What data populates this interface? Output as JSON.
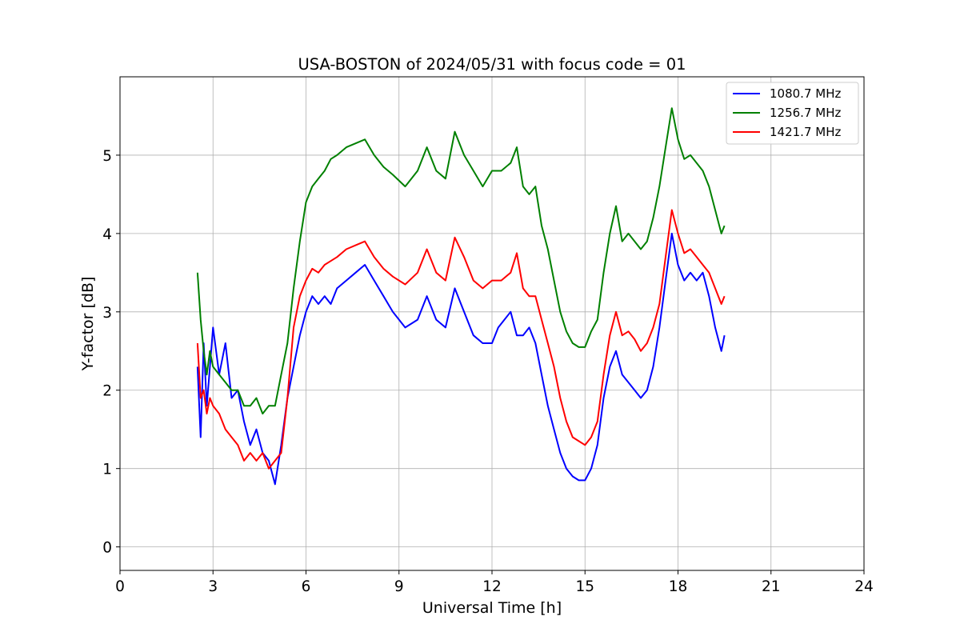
{
  "chart_data": {
    "type": "line",
    "title": "USA-BOSTON of 2024/05/31 with focus code = 01",
    "xlabel": "Universal Time [h]",
    "ylabel": "Y-factor [dB]",
    "xlim": [
      0,
      24
    ],
    "ylim": [
      -0.3,
      6.0
    ],
    "xticks": [
      0,
      3,
      6,
      9,
      12,
      15,
      18,
      21,
      24
    ],
    "yticks": [
      0,
      1,
      2,
      3,
      4,
      5
    ],
    "grid": true,
    "legend_position": "top-right",
    "series": [
      {
        "name": "1080.7 MHz",
        "color": "#0000ff",
        "points": [
          [
            2.5,
            2.3
          ],
          [
            2.6,
            1.4
          ],
          [
            2.7,
            2.6
          ],
          [
            2.8,
            1.8
          ],
          [
            2.9,
            2.3
          ],
          [
            3.0,
            2.8
          ],
          [
            3.2,
            2.2
          ],
          [
            3.4,
            2.6
          ],
          [
            3.6,
            1.9
          ],
          [
            3.8,
            2.0
          ],
          [
            4.0,
            1.6
          ],
          [
            4.2,
            1.3
          ],
          [
            4.4,
            1.5
          ],
          [
            4.6,
            1.2
          ],
          [
            4.8,
            1.1
          ],
          [
            5.0,
            0.8
          ],
          [
            5.2,
            1.3
          ],
          [
            5.4,
            1.9
          ],
          [
            5.6,
            2.3
          ],
          [
            5.8,
            2.7
          ],
          [
            6.0,
            3.0
          ],
          [
            6.2,
            3.2
          ],
          [
            6.4,
            3.1
          ],
          [
            6.6,
            3.2
          ],
          [
            6.8,
            3.1
          ],
          [
            7.0,
            3.3
          ],
          [
            7.3,
            3.4
          ],
          [
            7.6,
            3.5
          ],
          [
            7.9,
            3.6
          ],
          [
            8.2,
            3.4
          ],
          [
            8.5,
            3.2
          ],
          [
            8.8,
            3.0
          ],
          [
            9.2,
            2.8
          ],
          [
            9.6,
            2.9
          ],
          [
            9.9,
            3.2
          ],
          [
            10.2,
            2.9
          ],
          [
            10.5,
            2.8
          ],
          [
            10.8,
            3.3
          ],
          [
            11.1,
            3.0
          ],
          [
            11.4,
            2.7
          ],
          [
            11.7,
            2.6
          ],
          [
            12.0,
            2.6
          ],
          [
            12.2,
            2.8
          ],
          [
            12.4,
            2.9
          ],
          [
            12.6,
            3.0
          ],
          [
            12.8,
            2.7
          ],
          [
            13.0,
            2.7
          ],
          [
            13.2,
            2.8
          ],
          [
            13.4,
            2.6
          ],
          [
            13.6,
            2.2
          ],
          [
            13.8,
            1.8
          ],
          [
            14.0,
            1.5
          ],
          [
            14.2,
            1.2
          ],
          [
            14.4,
            1.0
          ],
          [
            14.6,
            0.9
          ],
          [
            14.8,
            0.85
          ],
          [
            15.0,
            0.85
          ],
          [
            15.2,
            1.0
          ],
          [
            15.4,
            1.3
          ],
          [
            15.6,
            1.9
          ],
          [
            15.8,
            2.3
          ],
          [
            16.0,
            2.5
          ],
          [
            16.2,
            2.2
          ],
          [
            16.4,
            2.1
          ],
          [
            16.6,
            2.0
          ],
          [
            16.8,
            1.9
          ],
          [
            17.0,
            2.0
          ],
          [
            17.2,
            2.3
          ],
          [
            17.4,
            2.8
          ],
          [
            17.6,
            3.4
          ],
          [
            17.8,
            4.0
          ],
          [
            18.0,
            3.6
          ],
          [
            18.2,
            3.4
          ],
          [
            18.4,
            3.5
          ],
          [
            18.6,
            3.4
          ],
          [
            18.8,
            3.5
          ],
          [
            19.0,
            3.2
          ],
          [
            19.2,
            2.8
          ],
          [
            19.4,
            2.5
          ],
          [
            19.5,
            2.7
          ]
        ]
      },
      {
        "name": "1256.7 MHz",
        "color": "#008000",
        "points": [
          [
            2.5,
            3.5
          ],
          [
            2.6,
            2.9
          ],
          [
            2.7,
            2.5
          ],
          [
            2.8,
            2.2
          ],
          [
            2.9,
            2.5
          ],
          [
            3.0,
            2.3
          ],
          [
            3.2,
            2.2
          ],
          [
            3.4,
            2.1
          ],
          [
            3.6,
            2.0
          ],
          [
            3.8,
            2.0
          ],
          [
            4.0,
            1.8
          ],
          [
            4.2,
            1.8
          ],
          [
            4.4,
            1.9
          ],
          [
            4.6,
            1.7
          ],
          [
            4.8,
            1.8
          ],
          [
            5.0,
            1.8
          ],
          [
            5.2,
            2.2
          ],
          [
            5.4,
            2.6
          ],
          [
            5.6,
            3.3
          ],
          [
            5.8,
            3.9
          ],
          [
            6.0,
            4.4
          ],
          [
            6.2,
            4.6
          ],
          [
            6.4,
            4.7
          ],
          [
            6.6,
            4.8
          ],
          [
            6.8,
            4.95
          ],
          [
            7.0,
            5.0
          ],
          [
            7.3,
            5.1
          ],
          [
            7.6,
            5.15
          ],
          [
            7.9,
            5.2
          ],
          [
            8.2,
            5.0
          ],
          [
            8.5,
            4.85
          ],
          [
            8.8,
            4.75
          ],
          [
            9.2,
            4.6
          ],
          [
            9.6,
            4.8
          ],
          [
            9.9,
            5.1
          ],
          [
            10.2,
            4.8
          ],
          [
            10.5,
            4.7
          ],
          [
            10.8,
            5.3
          ],
          [
            11.1,
            5.0
          ],
          [
            11.4,
            4.8
          ],
          [
            11.7,
            4.6
          ],
          [
            12.0,
            4.8
          ],
          [
            12.3,
            4.8
          ],
          [
            12.6,
            4.9
          ],
          [
            12.8,
            5.1
          ],
          [
            13.0,
            4.6
          ],
          [
            13.2,
            4.5
          ],
          [
            13.4,
            4.6
          ],
          [
            13.6,
            4.1
          ],
          [
            13.8,
            3.8
          ],
          [
            14.0,
            3.4
          ],
          [
            14.2,
            3.0
          ],
          [
            14.4,
            2.75
          ],
          [
            14.6,
            2.6
          ],
          [
            14.8,
            2.55
          ],
          [
            15.0,
            2.55
          ],
          [
            15.2,
            2.75
          ],
          [
            15.4,
            2.9
          ],
          [
            15.6,
            3.5
          ],
          [
            15.8,
            4.0
          ],
          [
            16.0,
            4.35
          ],
          [
            16.2,
            3.9
          ],
          [
            16.4,
            4.0
          ],
          [
            16.6,
            3.9
          ],
          [
            16.8,
            3.8
          ],
          [
            17.0,
            3.9
          ],
          [
            17.2,
            4.2
          ],
          [
            17.4,
            4.6
          ],
          [
            17.6,
            5.1
          ],
          [
            17.8,
            5.6
          ],
          [
            18.0,
            5.2
          ],
          [
            18.2,
            4.95
          ],
          [
            18.4,
            5.0
          ],
          [
            18.6,
            4.9
          ],
          [
            18.8,
            4.8
          ],
          [
            19.0,
            4.6
          ],
          [
            19.2,
            4.3
          ],
          [
            19.4,
            4.0
          ],
          [
            19.5,
            4.1
          ]
        ]
      },
      {
        "name": "1421.7 MHz",
        "color": "#ff0000",
        "points": [
          [
            2.5,
            2.6
          ],
          [
            2.6,
            1.9
          ],
          [
            2.7,
            2.0
          ],
          [
            2.8,
            1.7
          ],
          [
            2.9,
            1.9
          ],
          [
            3.0,
            1.8
          ],
          [
            3.2,
            1.7
          ],
          [
            3.4,
            1.5
          ],
          [
            3.6,
            1.4
          ],
          [
            3.8,
            1.3
          ],
          [
            4.0,
            1.1
          ],
          [
            4.2,
            1.2
          ],
          [
            4.4,
            1.1
          ],
          [
            4.6,
            1.2
          ],
          [
            4.8,
            1.0
          ],
          [
            5.0,
            1.1
          ],
          [
            5.2,
            1.2
          ],
          [
            5.4,
            1.9
          ],
          [
            5.6,
            2.8
          ],
          [
            5.8,
            3.2
          ],
          [
            6.0,
            3.4
          ],
          [
            6.2,
            3.55
          ],
          [
            6.4,
            3.5
          ],
          [
            6.6,
            3.6
          ],
          [
            6.8,
            3.65
          ],
          [
            7.0,
            3.7
          ],
          [
            7.3,
            3.8
          ],
          [
            7.6,
            3.85
          ],
          [
            7.9,
            3.9
          ],
          [
            8.2,
            3.7
          ],
          [
            8.5,
            3.55
          ],
          [
            8.8,
            3.45
          ],
          [
            9.2,
            3.35
          ],
          [
            9.6,
            3.5
          ],
          [
            9.9,
            3.8
          ],
          [
            10.2,
            3.5
          ],
          [
            10.5,
            3.4
          ],
          [
            10.8,
            3.95
          ],
          [
            11.1,
            3.7
          ],
          [
            11.4,
            3.4
          ],
          [
            11.7,
            3.3
          ],
          [
            12.0,
            3.4
          ],
          [
            12.3,
            3.4
          ],
          [
            12.6,
            3.5
          ],
          [
            12.8,
            3.75
          ],
          [
            13.0,
            3.3
          ],
          [
            13.2,
            3.2
          ],
          [
            13.4,
            3.2
          ],
          [
            13.6,
            2.9
          ],
          [
            13.8,
            2.6
          ],
          [
            14.0,
            2.3
          ],
          [
            14.2,
            1.9
          ],
          [
            14.4,
            1.6
          ],
          [
            14.6,
            1.4
          ],
          [
            14.8,
            1.35
          ],
          [
            15.0,
            1.3
          ],
          [
            15.2,
            1.4
          ],
          [
            15.4,
            1.6
          ],
          [
            15.6,
            2.2
          ],
          [
            15.8,
            2.7
          ],
          [
            16.0,
            3.0
          ],
          [
            16.2,
            2.7
          ],
          [
            16.4,
            2.75
          ],
          [
            16.6,
            2.65
          ],
          [
            16.8,
            2.5
          ],
          [
            17.0,
            2.6
          ],
          [
            17.2,
            2.8
          ],
          [
            17.4,
            3.1
          ],
          [
            17.6,
            3.7
          ],
          [
            17.8,
            4.3
          ],
          [
            18.0,
            4.0
          ],
          [
            18.2,
            3.75
          ],
          [
            18.4,
            3.8
          ],
          [
            18.6,
            3.7
          ],
          [
            18.8,
            3.6
          ],
          [
            19.0,
            3.5
          ],
          [
            19.2,
            3.3
          ],
          [
            19.4,
            3.1
          ],
          [
            19.5,
            3.2
          ]
        ]
      }
    ]
  }
}
